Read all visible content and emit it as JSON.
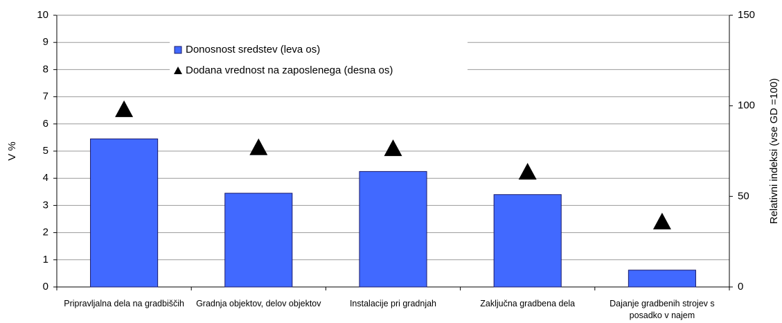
{
  "chart_data": {
    "type": "bar",
    "categories": [
      "Pripravljalna dela na gradbiščih",
      "Gradnja objektov, delov objektov",
      "Instalacije pri gradnjah",
      "Zaključna gradbena dela",
      "Dajanje gradbenih strojev s posadko v najem"
    ],
    "series": [
      {
        "name": "Donosnost sredstev (leva os)",
        "color": "#4169ff",
        "type": "bar",
        "values": [
          5.45,
          3.45,
          4.25,
          3.4,
          0.62
        ]
      },
      {
        "name": "Dodana vrednost na zaposlenega (desna os)",
        "color": "#000000",
        "type": "marker",
        "axis": "y2",
        "values": [
          98,
          77,
          76.5,
          63.5,
          36
        ]
      }
    ],
    "ylabel": "V %",
    "y2label": "Relativni indeksi (vse GD =100)",
    "ylim": [
      0,
      10
    ],
    "yticks": [
      0,
      1,
      2,
      3,
      4,
      5,
      6,
      7,
      8,
      9,
      10
    ],
    "y2lim": [
      0,
      150
    ],
    "y2ticks": [
      0,
      50,
      100,
      150
    ],
    "grid": true,
    "legend": "top"
  }
}
